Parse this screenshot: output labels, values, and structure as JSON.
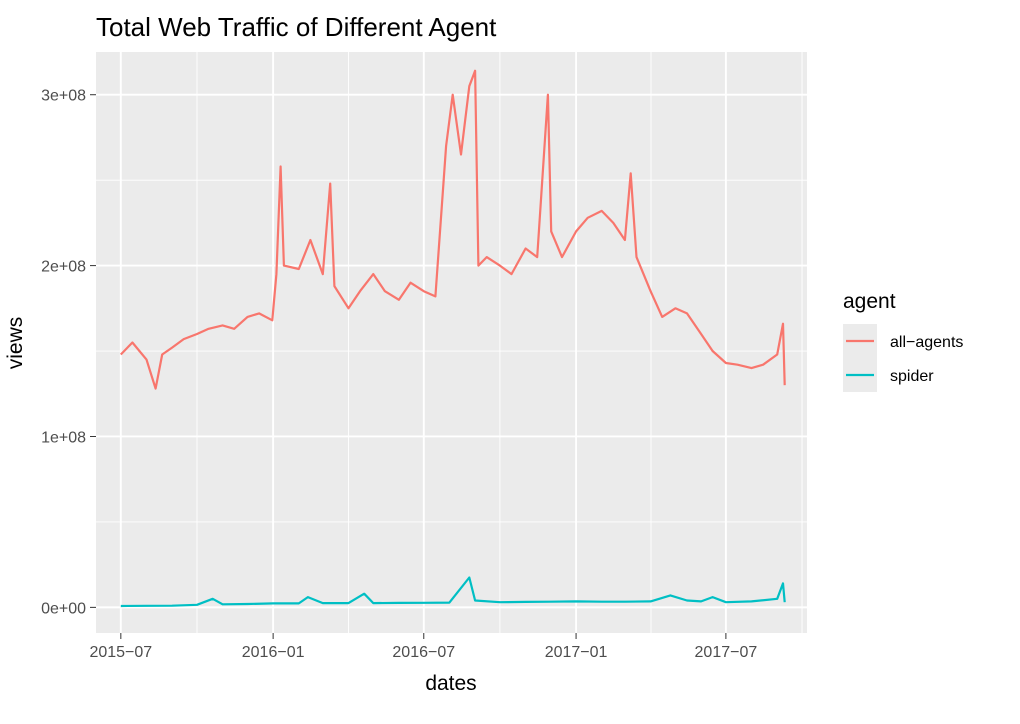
{
  "chart_data": {
    "type": "line",
    "title": "Total Web Traffic of Different Agent",
    "xlabel": "dates",
    "ylabel": "views",
    "x_ticks": [
      "2015-07",
      "2016-01",
      "2016-07",
      "2017-01",
      "2017-07"
    ],
    "y_ticks": [
      "0e+00",
      "1e+08",
      "2e+08",
      "3e+08"
    ],
    "xlim": [
      "2015-06-01",
      "2017-10-07"
    ],
    "ylim": [
      -15000000,
      325000000
    ],
    "grid": true,
    "legend": {
      "title": "agent",
      "position": "right"
    },
    "series": [
      {
        "name": "all-agents",
        "color": "#F8766D",
        "points": [
          [
            "2015-07-01",
            148000000
          ],
          [
            "2015-07-15",
            155000000
          ],
          [
            "2015-08-01",
            145000000
          ],
          [
            "2015-08-12",
            128000000
          ],
          [
            "2015-08-20",
            148000000
          ],
          [
            "2015-09-01",
            152000000
          ],
          [
            "2015-09-15",
            157000000
          ],
          [
            "2015-10-01",
            160000000
          ],
          [
            "2015-10-15",
            163000000
          ],
          [
            "2015-11-01",
            165000000
          ],
          [
            "2015-11-15",
            163000000
          ],
          [
            "2015-12-01",
            170000000
          ],
          [
            "2015-12-15",
            172000000
          ],
          [
            "2015-12-31",
            168000000
          ],
          [
            "2016-01-05",
            195000000
          ],
          [
            "2016-01-10",
            258000000
          ],
          [
            "2016-01-14",
            200000000
          ],
          [
            "2016-02-01",
            198000000
          ],
          [
            "2016-02-15",
            215000000
          ],
          [
            "2016-03-01",
            195000000
          ],
          [
            "2016-03-10",
            248000000
          ],
          [
            "2016-03-15",
            188000000
          ],
          [
            "2016-04-01",
            175000000
          ],
          [
            "2016-04-15",
            185000000
          ],
          [
            "2016-05-01",
            195000000
          ],
          [
            "2016-05-15",
            185000000
          ],
          [
            "2016-06-01",
            180000000
          ],
          [
            "2016-06-15",
            190000000
          ],
          [
            "2016-07-01",
            185000000
          ],
          [
            "2016-07-15",
            182000000
          ],
          [
            "2016-07-28",
            270000000
          ],
          [
            "2016-08-05",
            300000000
          ],
          [
            "2016-08-15",
            265000000
          ],
          [
            "2016-08-25",
            305000000
          ],
          [
            "2016-09-01",
            314000000
          ],
          [
            "2016-09-05",
            200000000
          ],
          [
            "2016-09-15",
            205000000
          ],
          [
            "2016-10-01",
            200000000
          ],
          [
            "2016-10-15",
            195000000
          ],
          [
            "2016-11-01",
            210000000
          ],
          [
            "2016-11-15",
            205000000
          ],
          [
            "2016-11-28",
            300000000
          ],
          [
            "2016-12-02",
            220000000
          ],
          [
            "2016-12-15",
            205000000
          ],
          [
            "2017-01-01",
            220000000
          ],
          [
            "2017-01-15",
            228000000
          ],
          [
            "2017-02-01",
            232000000
          ],
          [
            "2017-02-15",
            225000000
          ],
          [
            "2017-03-01",
            215000000
          ],
          [
            "2017-03-08",
            254000000
          ],
          [
            "2017-03-15",
            205000000
          ],
          [
            "2017-04-01",
            185000000
          ],
          [
            "2017-04-15",
            170000000
          ],
          [
            "2017-05-01",
            175000000
          ],
          [
            "2017-05-15",
            172000000
          ],
          [
            "2017-06-01",
            160000000
          ],
          [
            "2017-06-15",
            150000000
          ],
          [
            "2017-07-01",
            143000000
          ],
          [
            "2017-07-15",
            142000000
          ],
          [
            "2017-08-01",
            140000000
          ],
          [
            "2017-08-15",
            142000000
          ],
          [
            "2017-09-01",
            148000000
          ],
          [
            "2017-09-08",
            166000000
          ],
          [
            "2017-09-10",
            130000000
          ]
        ]
      },
      {
        "name": "spider",
        "color": "#00BFC4",
        "points": [
          [
            "2015-07-01",
            800000
          ],
          [
            "2015-08-01",
            900000
          ],
          [
            "2015-09-01",
            1000000
          ],
          [
            "2015-10-01",
            1500000
          ],
          [
            "2015-10-20",
            5000000
          ],
          [
            "2015-11-01",
            1800000
          ],
          [
            "2015-12-01",
            2000000
          ],
          [
            "2016-01-01",
            2300000
          ],
          [
            "2016-02-01",
            2300000
          ],
          [
            "2016-02-12",
            6000000
          ],
          [
            "2016-03-01",
            2500000
          ],
          [
            "2016-04-01",
            2500000
          ],
          [
            "2016-04-20",
            8000000
          ],
          [
            "2016-05-01",
            2500000
          ],
          [
            "2016-06-01",
            2600000
          ],
          [
            "2016-07-01",
            2700000
          ],
          [
            "2016-08-01",
            2800000
          ],
          [
            "2016-08-25",
            17500000
          ],
          [
            "2016-09-01",
            4000000
          ],
          [
            "2016-10-01",
            3000000
          ],
          [
            "2016-11-01",
            3200000
          ],
          [
            "2016-12-01",
            3300000
          ],
          [
            "2017-01-01",
            3500000
          ],
          [
            "2017-02-01",
            3300000
          ],
          [
            "2017-03-01",
            3300000
          ],
          [
            "2017-04-01",
            3500000
          ],
          [
            "2017-04-25",
            7000000
          ],
          [
            "2017-05-15",
            4000000
          ],
          [
            "2017-06-01",
            3500000
          ],
          [
            "2017-06-15",
            6000000
          ],
          [
            "2017-07-01",
            3000000
          ],
          [
            "2017-08-01",
            3500000
          ],
          [
            "2017-09-01",
            5000000
          ],
          [
            "2017-09-08",
            14000000
          ],
          [
            "2017-09-10",
            3000000
          ]
        ]
      }
    ]
  }
}
